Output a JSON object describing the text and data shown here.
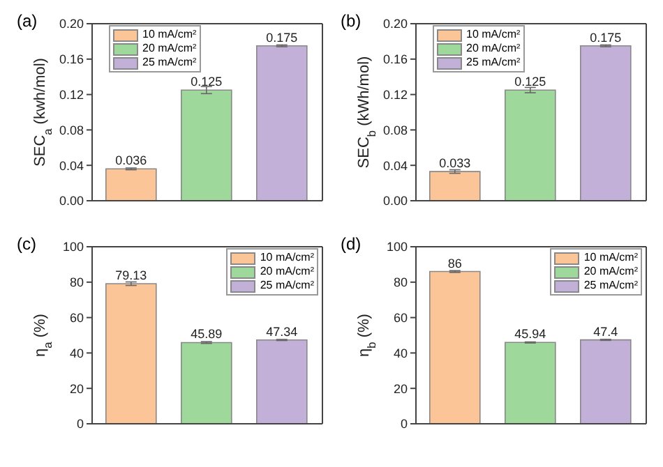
{
  "chart_data": [
    {
      "type": "bar",
      "title": "(a)",
      "ylabel": "SEC$_{a}$ (kwh/mol)",
      "categories": [
        null
      ],
      "series": [
        {
          "name": "10 mA/cm²",
          "color": "#fcc597",
          "values": [
            0.036
          ],
          "errors": [
            0.001
          ]
        },
        {
          "name": "20 mA/cm²",
          "color": "#9ed89a",
          "values": [
            0.125
          ],
          "errors": [
            0.004
          ]
        },
        {
          "name": "25 mA/cm²",
          "color": "#c3b0d8",
          "values": [
            0.175
          ],
          "errors": [
            0.001
          ]
        }
      ],
      "ylim": [
        0,
        0.2
      ],
      "yticks": [
        {
          "value": 0,
          "label": "0.00"
        },
        {
          "value": 0.04,
          "label": "0.04"
        },
        {
          "value": 0.08,
          "label": "0.08"
        },
        {
          "value": 0.12,
          "label": "0.12"
        },
        {
          "value": 0.16,
          "label": "0.16"
        },
        {
          "value": 0.2,
          "label": "0.20"
        }
      ],
      "data_labels": true,
      "legend": "top left",
      "grid": false
    },
    {
      "type": "bar",
      "title": "(b)",
      "ylabel": "SEC$_{b}$ (kWh/mol)",
      "categories": [
        null
      ],
      "series": [
        {
          "name": "10 mA/cm²",
          "color": "#fcc597",
          "values": [
            0.033
          ],
          "errors": [
            0.002
          ]
        },
        {
          "name": "20 mA/cm²",
          "color": "#9ed89a",
          "values": [
            0.125
          ],
          "errors": [
            0.003
          ]
        },
        {
          "name": "25 mA/cm²",
          "color": "#c3b0d8",
          "values": [
            0.175
          ],
          "errors": [
            0.001
          ]
        }
      ],
      "ylim": [
        0,
        0.2
      ],
      "yticks": [
        {
          "value": 0,
          "label": "0.00"
        },
        {
          "value": 0.04,
          "label": "0.04"
        },
        {
          "value": 0.08,
          "label": "0.08"
        },
        {
          "value": 0.12,
          "label": "0.12"
        },
        {
          "value": 0.16,
          "label": "0.16"
        },
        {
          "value": 0.2,
          "label": "0.20"
        }
      ],
      "data_labels": true,
      "legend": "top left",
      "grid": false
    },
    {
      "type": "bar",
      "title": "(c)",
      "ylabel": "η$_{a}$ (%)",
      "categories": [
        null
      ],
      "series": [
        {
          "name": "10 mA/cm²",
          "color": "#fcc597",
          "values": [
            79.13
          ],
          "errors": [
            1
          ]
        },
        {
          "name": "20 mA/cm²",
          "color": "#9ed89a",
          "values": [
            45.89
          ],
          "errors": [
            0.5
          ]
        },
        {
          "name": "25 mA/cm²",
          "color": "#c3b0d8",
          "values": [
            47.34
          ],
          "errors": [
            0.3
          ]
        }
      ],
      "ylim": [
        0,
        100
      ],
      "yticks": [
        0,
        20,
        40,
        60,
        80,
        100
      ],
      "data_labels": true,
      "legend": "top right",
      "grid": false
    },
    {
      "type": "bar",
      "title": "(d)",
      "ylabel": "η$_{b}$ (%)",
      "categories": [
        null
      ],
      "series": [
        {
          "name": "10 mA/cm²",
          "color": "#fcc597",
          "values": [
            86
          ],
          "errors": [
            0.5
          ]
        },
        {
          "name": "20 mA/cm²",
          "color": "#9ed89a",
          "values": [
            45.94
          ],
          "errors": [
            0.3
          ]
        },
        {
          "name": "25 mA/cm²",
          "color": "#c3b0d8",
          "values": [
            47.4
          ],
          "errors": [
            0.3
          ]
        }
      ],
      "ylim": [
        0,
        100
      ],
      "yticks": [
        0,
        20,
        40,
        60,
        80,
        100
      ],
      "data_labels": true,
      "legend": "top right",
      "grid": false
    }
  ]
}
